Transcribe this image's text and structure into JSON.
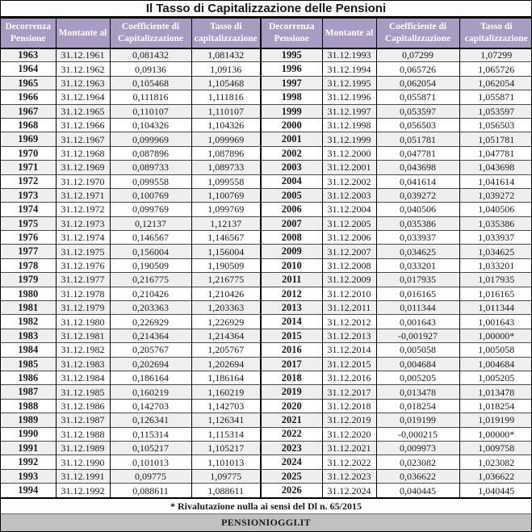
{
  "title": "Il Tasso di Capitalizzazione delle Pensioni",
  "columns": [
    "Decorrenza Pensione",
    "Montante al",
    "Coefficiente di Capitalizzazione",
    "Tasso di capitalizzazione"
  ],
  "footnote": "* Rivalutazione nulla ai sensi del Dl n. 65/2015",
  "source": "PENSIONIOGGI.IT",
  "colors": {
    "header_bg": "#a89cc4",
    "header_text": "#ffffff",
    "stripe": "#efefef",
    "source_bar_bg": "#c0c0c0"
  },
  "rows_left": [
    [
      "1963",
      "31.12.1961",
      "0,081432",
      "1,081432"
    ],
    [
      "1964",
      "31.12.1962",
      "0,09136",
      "1,09136"
    ],
    [
      "1965",
      "31.12.1963",
      "0,105468",
      "1,105468"
    ],
    [
      "1966",
      "31.12.1964",
      "0,111816",
      "1,111816"
    ],
    [
      "1967",
      "31.12.1965",
      "0,110107",
      "1,110107"
    ],
    [
      "1968",
      "31.12.1966",
      "0,104326",
      "1,104326"
    ],
    [
      "1969",
      "31.12.1967",
      "0,099969",
      "1,099969"
    ],
    [
      "1970",
      "31.12.1968",
      "0,087896",
      "1,087896"
    ],
    [
      "1971",
      "31.12.1969",
      "0,089733",
      "1,089733"
    ],
    [
      "1972",
      "31.12.1970",
      "0,099558",
      "1,099558"
    ],
    [
      "1973",
      "31.12.1971",
      "0,100769",
      "1,100769"
    ],
    [
      "1974",
      "31.12.1972",
      "0,099769",
      "1,099769"
    ],
    [
      "1975",
      "31.12.1973",
      "0,12137",
      "1,12137"
    ],
    [
      "1976",
      "31.12.1974",
      "0,146567",
      "1,146567"
    ],
    [
      "1977",
      "31.12.1975",
      "0,156004",
      "1,156004"
    ],
    [
      "1978",
      "31.12.1976",
      "0,190509",
      "1,190509"
    ],
    [
      "1979",
      "31.12.1977",
      "0,216775",
      "1,216775"
    ],
    [
      "1980",
      "31.12.1978",
      "0,210426",
      "1,210426"
    ],
    [
      "1981",
      "31.12.1979",
      "0,203363",
      "1,203363"
    ],
    [
      "1982",
      "31.12.1980",
      "0,226929",
      "1,226929"
    ],
    [
      "1983",
      "31.12.1981",
      "0,214364",
      "1,214364"
    ],
    [
      "1984",
      "31.12.1982",
      "0,205767",
      "1,205767"
    ],
    [
      "1985",
      "31.12.1983",
      "0,202694",
      "1,202694"
    ],
    [
      "1986",
      "31.12.1984",
      "0,186164",
      "1,186164"
    ],
    [
      "1987",
      "31.12.1985",
      "0,160219",
      "1,160219"
    ],
    [
      "1988",
      "31.12.1986",
      "0,142703",
      "1,142703"
    ],
    [
      "1989",
      "31.12.1987",
      "0,126341",
      "1,126341"
    ],
    [
      "1990",
      "31.12.1988",
      "0,115314",
      "1,115314"
    ],
    [
      "1991",
      "31.12.1989",
      "0,105217",
      "1,105217"
    ],
    [
      "1992",
      "31.12.1990",
      "0,101013",
      "1,101013"
    ],
    [
      "1993",
      "31.12.1991",
      "0,09775",
      "1,09775"
    ],
    [
      "1994",
      "31.12.1992",
      "0,088611",
      "1,088611"
    ]
  ],
  "rows_right": [
    [
      "1995",
      "31.12.1993",
      "0,07299",
      "1,07299"
    ],
    [
      "1996",
      "31.12.1994",
      "0,065726",
      "1,065726"
    ],
    [
      "1997",
      "31.12.1995",
      "0,062054",
      "1,062054"
    ],
    [
      "1998",
      "31.12.1996",
      "0,055871",
      "1,055871"
    ],
    [
      "1999",
      "31.12.1997",
      "0,053597",
      "1,053597"
    ],
    [
      "2000",
      "31.12.1998",
      "0,056503",
      "1,056503"
    ],
    [
      "2001",
      "31.12.1999",
      "0,051781",
      "1,051781"
    ],
    [
      "2002",
      "31.12.2000",
      "0,047781",
      "1,047781"
    ],
    [
      "2003",
      "31.12.2001",
      "0,043698",
      "1,043698"
    ],
    [
      "2004",
      "31.12.2002",
      "0,041614",
      "1,041614"
    ],
    [
      "2005",
      "31.12.2003",
      "0,039272",
      "1,039272"
    ],
    [
      "2006",
      "31.12.2004",
      "0,040506",
      "1,040506"
    ],
    [
      "2007",
      "31.12.2005",
      "0,035386",
      "1,035386"
    ],
    [
      "2008",
      "31.12.2006",
      "0,033937",
      "1,033937"
    ],
    [
      "2009",
      "31.12.2007",
      "0,034625",
      "1,034625"
    ],
    [
      "2010",
      "31.12.2008",
      "0,033201",
      "1,033201"
    ],
    [
      "2011",
      "31.12.2009",
      "0,017935",
      "1,017935"
    ],
    [
      "2012",
      "31.12.2010",
      "0,016165",
      "1,016165"
    ],
    [
      "2013",
      "31.12.2011",
      "0,011344",
      "1,011344"
    ],
    [
      "2014",
      "31.12.2012",
      "0,001643",
      "1,001643"
    ],
    [
      "2015",
      "31.12.2013",
      "-0,001927",
      "1,00000*"
    ],
    [
      "2016",
      "31.12.2014",
      "0,005058",
      "1,005058"
    ],
    [
      "2017",
      "31.12.2015",
      "0,004684",
      "1,004684"
    ],
    [
      "2018",
      "31.12.2016",
      "0,005205",
      "1,005205"
    ],
    [
      "2019",
      "31.12.2017",
      "0,013478",
      "1,013478"
    ],
    [
      "2020",
      "31.12.2018",
      "0,018254",
      "1,018254"
    ],
    [
      "2021",
      "31.12.2019",
      "0,019199",
      "1,019199"
    ],
    [
      "2022",
      "31.12.2020",
      "-0,000215",
      "1,00000*"
    ],
    [
      "2023",
      "31.12.2021",
      "0,009973",
      "1,009758"
    ],
    [
      "2024",
      "31.12.2022",
      "0,023082",
      "1,023082"
    ],
    [
      "2025",
      "31.12.2023",
      "0,036622",
      "1,036622"
    ],
    [
      "2026",
      "31.12.2024",
      "0,040445",
      "1,040445"
    ]
  ]
}
